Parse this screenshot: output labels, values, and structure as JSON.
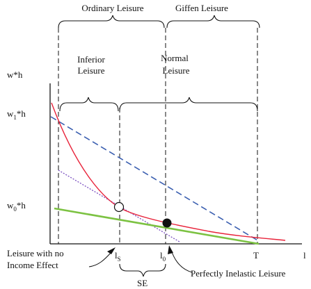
{
  "brackets": {
    "ordinary_leisure": "Ordinary Leisure",
    "giffen_leisure": "Giffen Leisure",
    "inferior_leisure": [
      "Inferior",
      "Leisure"
    ],
    "normal_leisure": [
      "Normal",
      "Leisure"
    ]
  },
  "axis": {
    "y_top": "w*h",
    "w1h": {
      "base": "w",
      "sub": "1",
      "rest": "*h"
    },
    "w0h": {
      "base": "w",
      "sub": "0",
      "rest": "*h"
    },
    "x_end": "l",
    "ls": {
      "base": "l",
      "sub": "S"
    },
    "l0": {
      "base": "l",
      "sub": "0"
    },
    "T": "T",
    "se": "SE"
  },
  "annotations": {
    "no_income_effect": [
      "Leisure with no",
      "Income Effect"
    ],
    "perfectly_inelastic": "Perfectly Inelastic Leisure"
  },
  "colors": {
    "axis": "#111111",
    "red_curve": "#e8233a",
    "blue_dashed": "#3b5fb0",
    "purple_dotted": "#7a4fc0",
    "green_line": "#7cc242"
  },
  "markers": {
    "open_circle": "substitution-point",
    "filled_circle": "inelastic-point"
  }
}
